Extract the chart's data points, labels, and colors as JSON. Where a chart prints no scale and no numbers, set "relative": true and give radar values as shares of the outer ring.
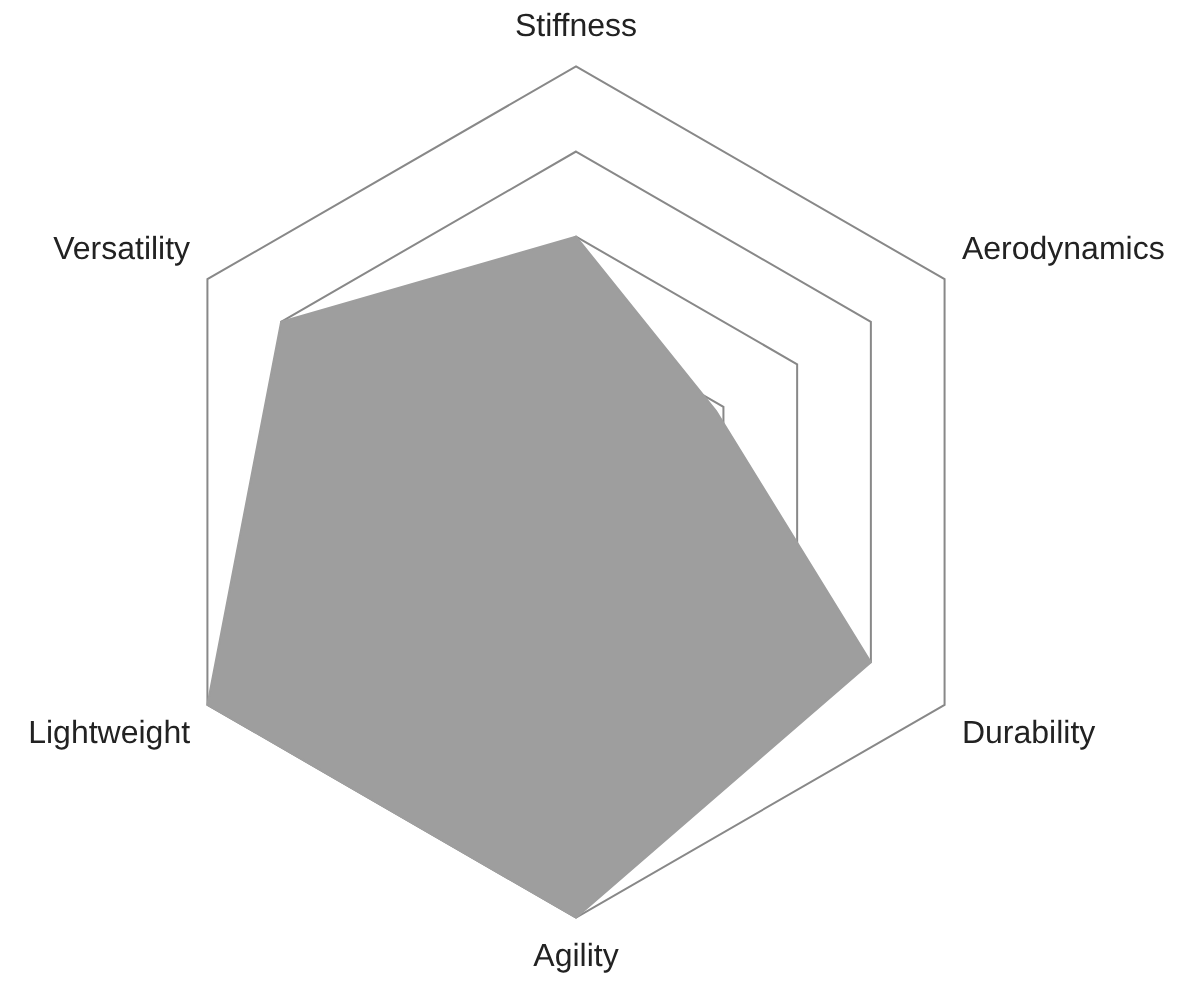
{
  "chart_data": {
    "type": "radar",
    "relative": true,
    "categories": [
      "Stiffness",
      "Aerodynamics",
      "Durability",
      "Agility",
      "Lightweight",
      "Versatility"
    ],
    "series": [
      {
        "color": "#9e9e9e",
        "values": [
          0.6,
          0.38,
          0.8,
          1,
          1,
          0.8
        ]
      }
    ]
  }
}
